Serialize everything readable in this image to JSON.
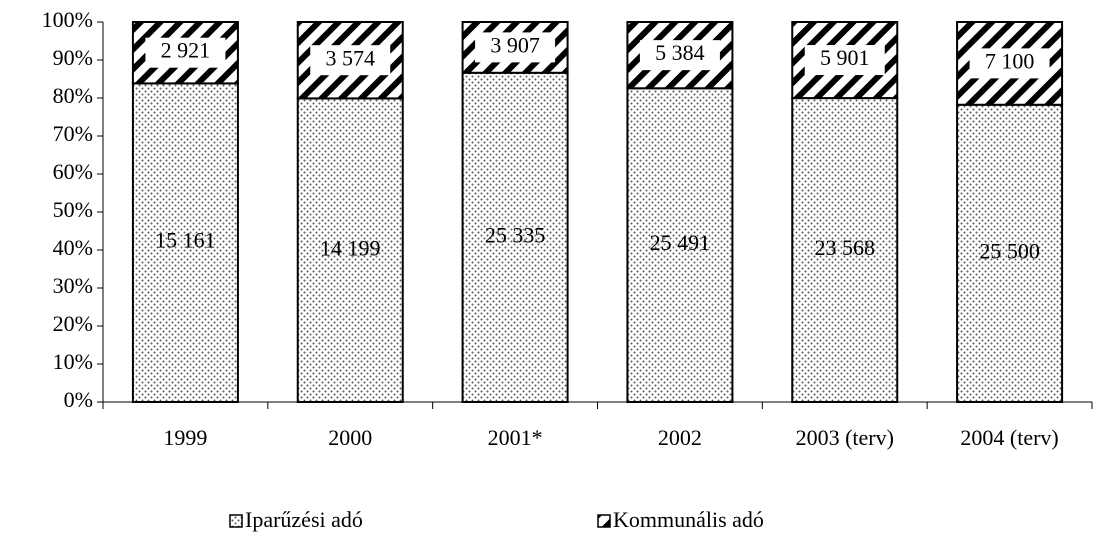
{
  "chart_data": {
    "type": "bar",
    "stack": "percent",
    "categories": [
      "1999",
      "2000",
      "2001*",
      "2002",
      "2003 (terv)",
      "2004 (terv)"
    ],
    "series": [
      {
        "name": "Iparűzési adó",
        "color": "#000000",
        "pattern": "dots",
        "values": [
          15161,
          14199,
          25335,
          25491,
          23568,
          25500
        ],
        "value_labels": [
          "15 161",
          "14 199",
          "25 335",
          "25 491",
          "23 568",
          "25 500"
        ]
      },
      {
        "name": "Kommunális adó",
        "color": "#000000",
        "pattern": "hatch",
        "values": [
          2921,
          3574,
          3907,
          5384,
          5901,
          7100
        ],
        "value_labels": [
          "2 921",
          "3 574",
          "3 907",
          "5 384",
          "5 901",
          "7 100"
        ]
      }
    ],
    "ylim": [
      0,
      100
    ],
    "yticks": [
      {
        "value": 0,
        "label": "0%"
      },
      {
        "value": 10,
        "label": "10%"
      },
      {
        "value": 20,
        "label": "20%"
      },
      {
        "value": 30,
        "label": "30%"
      },
      {
        "value": 40,
        "label": "40%"
      },
      {
        "value": 50,
        "label": "50%"
      },
      {
        "value": 60,
        "label": "60%"
      },
      {
        "value": 70,
        "label": "70%"
      },
      {
        "value": 80,
        "label": "80%"
      },
      {
        "value": 90,
        "label": "90%"
      },
      {
        "value": 100,
        "label": "100%"
      }
    ],
    "legend": "bottom"
  }
}
